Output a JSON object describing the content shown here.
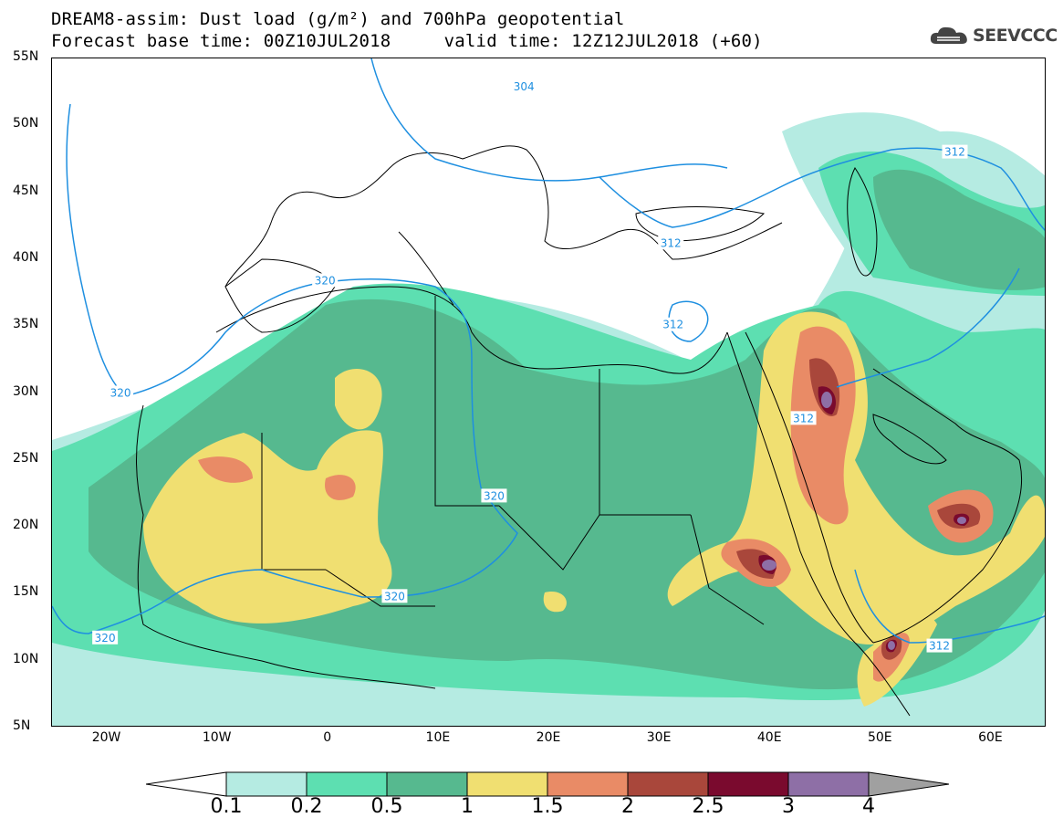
{
  "title": {
    "line1": "DREAM8-assim: Dust load (g/m²) and 700hPa geopotential",
    "line2": "Forecast base time: 00Z10JUL2018     valid time: 12Z12JUL2018 (+60)"
  },
  "logo": {
    "text": "SEEVCCC",
    "icon": "cloud-icon"
  },
  "axes": {
    "y_ticks": [
      "55N",
      "50N",
      "45N",
      "40N",
      "35N",
      "30N",
      "25N",
      "20N",
      "15N",
      "10N",
      "5N"
    ],
    "x_ticks": [
      "20W",
      "10W",
      "0",
      "10E",
      "20E",
      "30E",
      "40E",
      "50E",
      "60E"
    ],
    "lon_range": [
      -25,
      65
    ],
    "lat_range": [
      5,
      55
    ]
  },
  "contour_labels": [
    {
      "text": "304",
      "lon": 17.7,
      "lat": 52.9
    },
    {
      "text": "312",
      "lon": 56.7,
      "lat": 48.0
    },
    {
      "text": "312",
      "lon": 31.0,
      "lat": 41.2
    },
    {
      "text": "312",
      "lon": 31.2,
      "lat": 35.1
    },
    {
      "text": "312",
      "lon": 43.0,
      "lat": 28.1
    },
    {
      "text": "312",
      "lon": 55.3,
      "lat": 11.1
    },
    {
      "text": "320",
      "lon": -0.3,
      "lat": 38.4
    },
    {
      "text": "320",
      "lon": -18.8,
      "lat": 30.0
    },
    {
      "text": "320",
      "lon": 15.0,
      "lat": 22.3
    },
    {
      "text": "320",
      "lon": 6.0,
      "lat": 14.8
    },
    {
      "text": "320",
      "lon": -20.2,
      "lat": 11.7
    }
  ],
  "colorbar": {
    "labels": [
      "0.1",
      "0.2",
      "0.5",
      "1",
      "1.5",
      "2",
      "2.5",
      "3",
      "4"
    ],
    "colors": [
      "#ffffff",
      "#b5ebe2",
      "#5ddfb1",
      "#56b98f",
      "#f0df71",
      "#e98b66",
      "#a9473b",
      "#7a0a2e",
      "#8e6fa6",
      "#a0a0a0"
    ],
    "units": "g/m²"
  },
  "colors": {
    "contour": "#1e8fe0",
    "border": "#000000"
  }
}
